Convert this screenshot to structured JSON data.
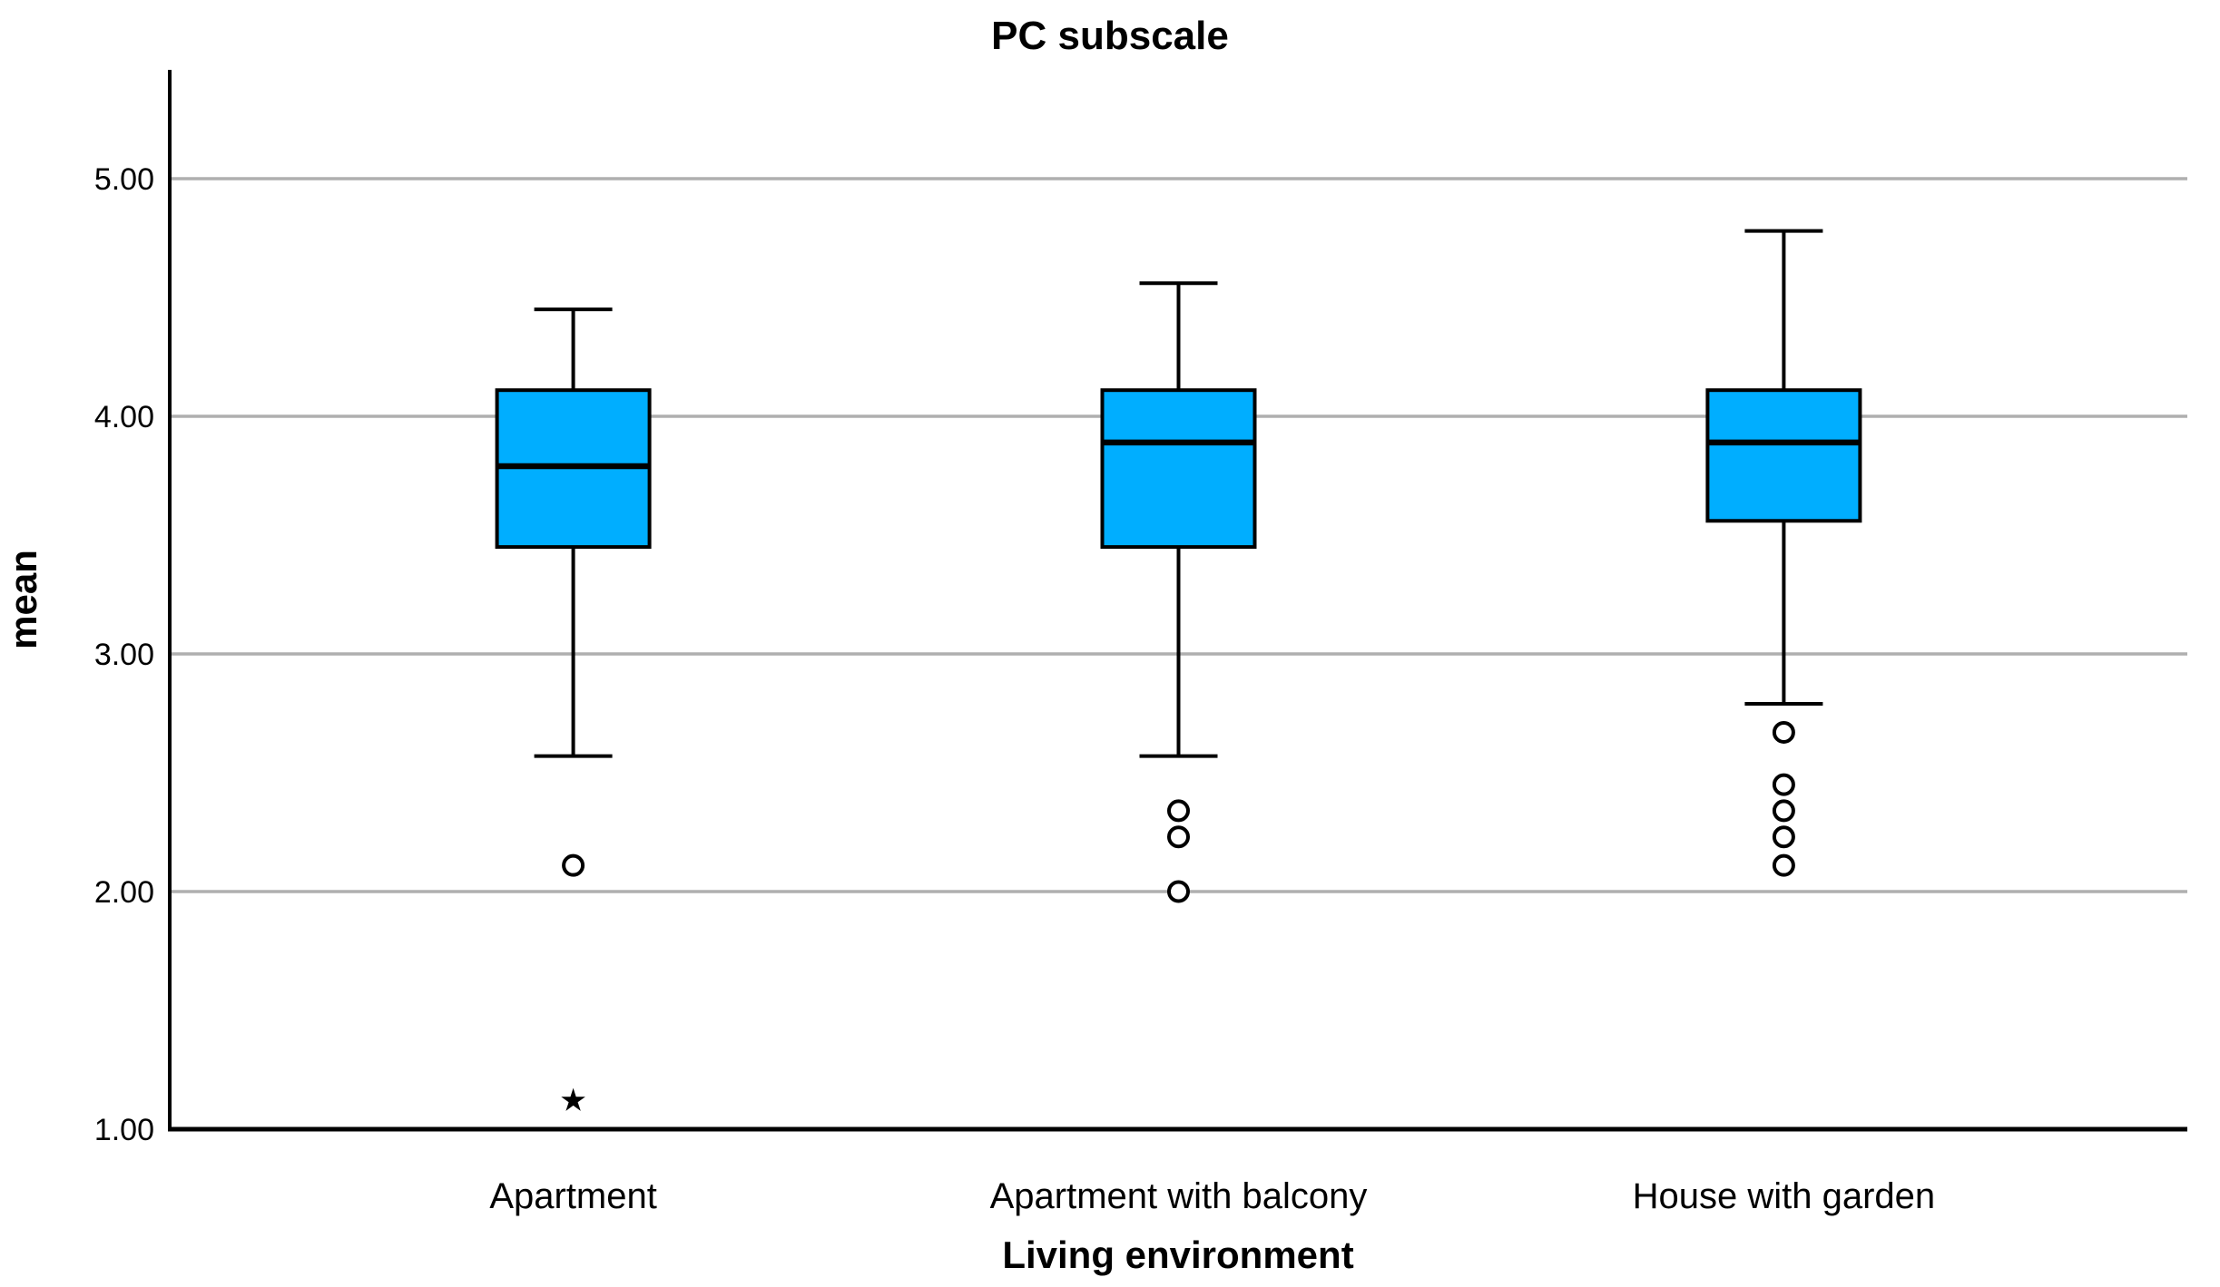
{
  "chart_data": {
    "type": "boxplot",
    "title": "PC subscale",
    "xlabel": "Living environment",
    "ylabel": "mean",
    "ylim": [
      1.0,
      5.47
    ],
    "grid": "horizontal",
    "legend": "none",
    "y_ticks": [
      {
        "value": 1,
        "label": "1.00"
      },
      {
        "value": 2,
        "label": "2.00"
      },
      {
        "value": 3,
        "label": "3.00"
      },
      {
        "value": 4,
        "label": "4.00"
      },
      {
        "value": 5,
        "label": "5.00"
      }
    ],
    "categories": [
      "Apartment",
      "Apartment with balcony",
      "House with garden"
    ],
    "series": [
      {
        "category": "Apartment",
        "whisker_low": 2.57,
        "q1": 3.45,
        "median": 3.79,
        "q3": 4.11,
        "whisker_high": 4.45,
        "outliers": [
          2.11
        ],
        "extremes": [
          1.12
        ]
      },
      {
        "category": "Apartment with balcony",
        "whisker_low": 2.57,
        "q1": 3.45,
        "median": 3.89,
        "q3": 4.11,
        "whisker_high": 4.56,
        "outliers": [
          2.0,
          2.23,
          2.34
        ],
        "extremes": []
      },
      {
        "category": "House with garden",
        "whisker_low": 2.79,
        "q1": 3.56,
        "median": 3.89,
        "q3": 4.11,
        "whisker_high": 4.78,
        "outliers": [
          2.11,
          2.23,
          2.34,
          2.45,
          2.67
        ],
        "extremes": []
      }
    ],
    "style": {
      "box_fill": "#00AEFF",
      "box_stroke": "#000000",
      "median_color": "#000000",
      "whisker_color": "#000000",
      "gridline_color": "#AFAFAF",
      "axis_color": "#000000",
      "outlier_marker": "circle",
      "extreme_marker": "asterisk"
    }
  }
}
